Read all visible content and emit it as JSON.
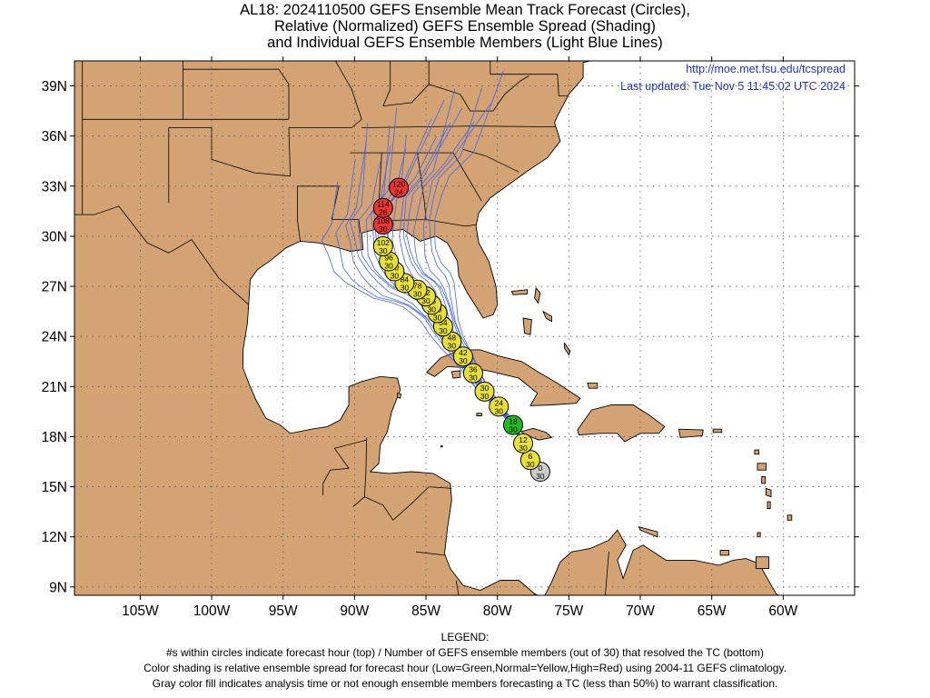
{
  "title": {
    "line1": "AL18: 2024110500 GEFS Ensemble Mean Track Forecast (Circles),",
    "line2": "Relative (Normalized) GEFS Ensemble Spread (Shading)",
    "line3": "and Individual GEFS Ensemble Members (Light Blue Lines)"
  },
  "source": {
    "url": "http://moe.met.fsu.edu/tcspread",
    "updated": "Last updated: Tue Nov 5 11:45:02 UTC 2024"
  },
  "axes": {
    "lat_labels": [
      "39N",
      "36N",
      "33N",
      "30N",
      "27N",
      "24N",
      "21N",
      "18N",
      "15N",
      "12N",
      "9N"
    ],
    "lat_values": [
      39,
      36,
      33,
      30,
      27,
      24,
      21,
      18,
      15,
      12,
      9
    ],
    "lon_labels": [
      "105W",
      "100W",
      "95W",
      "90W",
      "85W",
      "80W",
      "75W",
      "70W",
      "65W",
      "60W"
    ],
    "lon_values": [
      -105,
      -100,
      -95,
      -90,
      -85,
      -80,
      -75,
      -70,
      -65,
      -60
    ],
    "lon_range": [
      -109.6,
      -55
    ],
    "lat_range": [
      8.5,
      40.5
    ],
    "grid": true
  },
  "colors": {
    "land": "#d4a373",
    "ocean": "#ffffff",
    "member_tracks": "#4466ee",
    "low_spread": "#22bb22",
    "normal_spread": "#e8e03a",
    "high_spread": "#ee3333",
    "analysis": "#cccccc"
  },
  "forecast_points": [
    {
      "hour": "0",
      "members": "30",
      "lon": -77.0,
      "lat": 15.9,
      "spread": "gray"
    },
    {
      "hour": "6",
      "members": "30",
      "lon": -77.7,
      "lat": 16.6,
      "spread": "normal"
    },
    {
      "hour": "12",
      "members": "30",
      "lon": -78.2,
      "lat": 17.6,
      "spread": "normal"
    },
    {
      "hour": "18",
      "members": "30",
      "lon": -78.9,
      "lat": 18.7,
      "spread": "low"
    },
    {
      "hour": "24",
      "members": "30",
      "lon": -79.9,
      "lat": 19.8,
      "spread": "normal"
    },
    {
      "hour": "30",
      "members": "30",
      "lon": -80.9,
      "lat": 20.7,
      "spread": "normal"
    },
    {
      "hour": "36",
      "members": "30",
      "lon": -81.7,
      "lat": 21.8,
      "spread": "normal"
    },
    {
      "hour": "42",
      "members": "30",
      "lon": -82.4,
      "lat": 22.8,
      "spread": "normal"
    },
    {
      "hour": "48",
      "members": "30",
      "lon": -83.2,
      "lat": 23.7,
      "spread": "normal"
    },
    {
      "hour": "54",
      "members": "30",
      "lon": -83.8,
      "lat": 24.6,
      "spread": "normal"
    },
    {
      "hour": "60",
      "members": "30",
      "lon": -84.2,
      "lat": 25.4,
      "spread": "normal"
    },
    {
      "hour": "66",
      "members": "30",
      "lon": -84.6,
      "lat": 25.9,
      "spread": "normal"
    },
    {
      "hour": "72",
      "members": "30",
      "lon": -85.0,
      "lat": 26.4,
      "spread": "normal"
    },
    {
      "hour": "78",
      "members": "30",
      "lon": -85.6,
      "lat": 26.8,
      "spread": "normal"
    },
    {
      "hour": "84",
      "members": "30",
      "lon": -86.5,
      "lat": 27.2,
      "spread": "normal"
    },
    {
      "hour": "90",
      "members": "30",
      "lon": -87.2,
      "lat": 27.9,
      "spread": "normal"
    },
    {
      "hour": "96",
      "members": "30",
      "lon": -87.6,
      "lat": 28.5,
      "spread": "normal"
    },
    {
      "hour": "102",
      "members": "30",
      "lon": -88.0,
      "lat": 29.4,
      "spread": "normal"
    },
    {
      "hour": "108",
      "members": "30",
      "lon": -88.0,
      "lat": 30.7,
      "spread": "high"
    },
    {
      "hour": "114",
      "members": "26",
      "lon": -88.0,
      "lat": 31.7,
      "spread": "high"
    },
    {
      "hour": "120",
      "members": "24",
      "lon": -86.9,
      "lat": 32.9,
      "spread": "high"
    }
  ],
  "legend": {
    "heading": "LEGEND:",
    "line1": "#s within circles indicate forecast hour (top) / Number of GEFS ensemble members (out of 30) that resolved the TC (bottom)",
    "line2": "Color shading is relative ensemble spread for forecast hour (Low=Green,Normal=Yellow,High=Red) using 2004-11 GEFS climatology.",
    "line3": "Gray color fill indicates analysis time or not enough ensemble members forecasting a TC (less than 50%) to warrant classification."
  }
}
